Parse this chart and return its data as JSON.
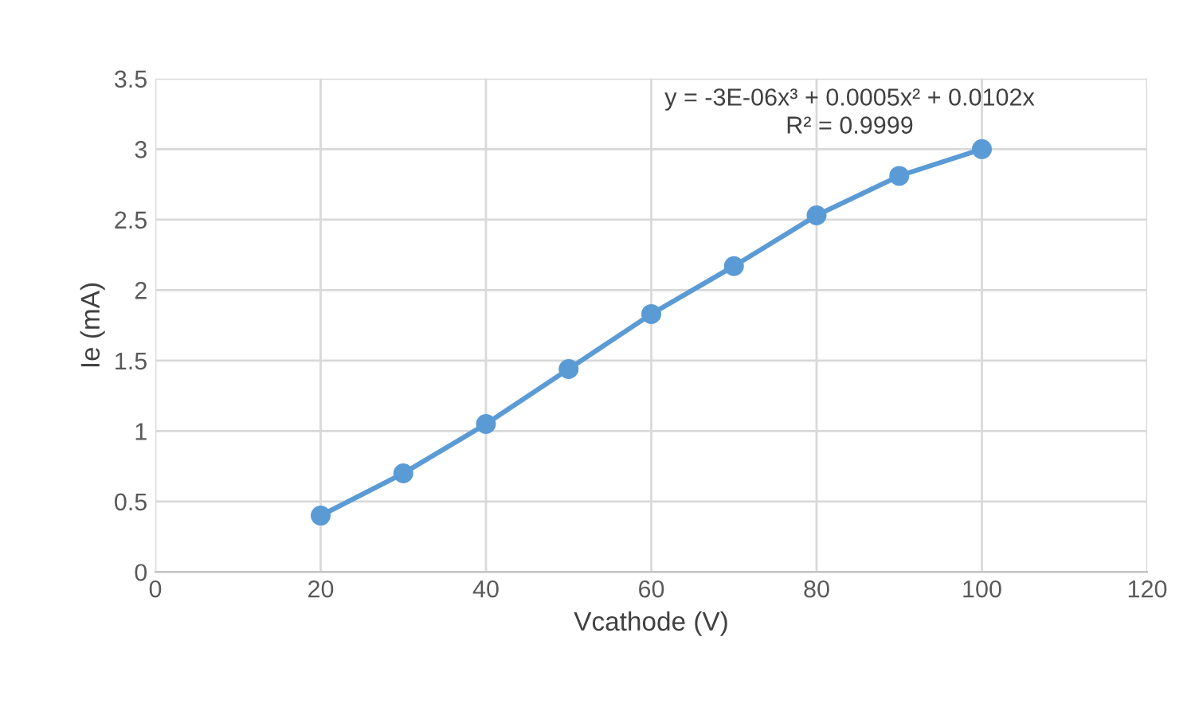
{
  "chart_data": {
    "type": "line",
    "xlabel": "Vcathode (V)",
    "ylabel": "Ie (mA)",
    "x": [
      20,
      30,
      40,
      50,
      60,
      70,
      80,
      90,
      100
    ],
    "series": [
      {
        "color": "#5b9bd5",
        "values": [
          0.4,
          0.7,
          1.05,
          1.44,
          1.83,
          2.17,
          2.53,
          2.81,
          3.0
        ]
      }
    ],
    "marker": "circle",
    "line_style": "solid",
    "xlim": [
      0,
      120
    ],
    "xticks": [
      0,
      20,
      40,
      60,
      80,
      100,
      120
    ],
    "ylim": [
      0,
      3.5
    ],
    "yticks": [
      0,
      0.5,
      1,
      1.5,
      2,
      2.5,
      3,
      3.5
    ],
    "grid": true,
    "legend": false,
    "annotations": [
      "y = -3E-06x³ + 0.0005x² + 0.0102x\nR² = 0.9999"
    ]
  }
}
